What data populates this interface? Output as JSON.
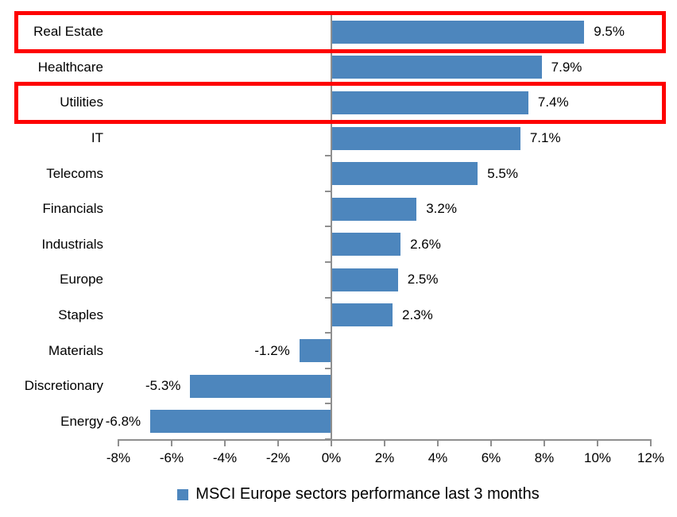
{
  "chart_data": {
    "type": "bar",
    "orientation": "horizontal",
    "title": "",
    "categories": [
      "Real Estate",
      "Healthcare",
      "Utilities",
      "IT",
      "Telecoms",
      "Financials",
      "Industrials",
      "Europe",
      "Staples",
      "Materials",
      "Discretionary",
      "Energy"
    ],
    "values": [
      9.5,
      7.9,
      7.4,
      7.1,
      5.5,
      3.2,
      2.6,
      2.5,
      2.3,
      -1.2,
      -5.3,
      -6.8
    ],
    "value_labels": [
      "9.5%",
      "7.9%",
      "7.4%",
      "7.1%",
      "5.5%",
      "3.2%",
      "2.6%",
      "2.5%",
      "2.3%",
      "-1.2%",
      "-5.3%",
      "-6.8%"
    ],
    "xlim": [
      -8,
      12
    ],
    "x_tick_labels": [
      "-8%",
      "-6%",
      "-4%",
      "-2%",
      "0%",
      "2%",
      "4%",
      "6%",
      "8%",
      "10%",
      "12%"
    ],
    "x_tick_values": [
      -8,
      -6,
      -4,
      -2,
      0,
      2,
      4,
      6,
      8,
      10,
      12
    ],
    "grid": false,
    "bar_color": "#4D86BD",
    "axis_color": "#8F8F8F",
    "text_color": "#000000",
    "highlight_color": "#FE0000",
    "highlighted_categories": [
      "Real Estate",
      "Utilities"
    ],
    "legend": {
      "position": "bottom",
      "label": "MSCI Europe sectors performance last 3 months",
      "swatch_color": "#4D86BD"
    }
  }
}
